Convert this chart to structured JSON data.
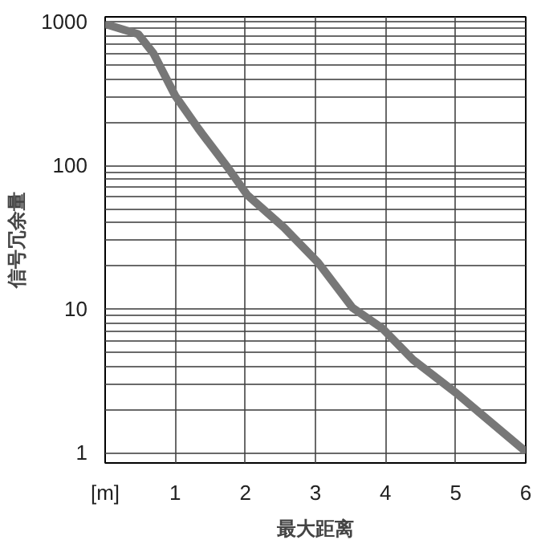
{
  "chart_data": {
    "type": "line",
    "xlabel": "最大距离",
    "ylabel": "信号冗余量",
    "x": [
      0.04,
      0.47,
      0.69,
      1.0,
      1.33,
      1.76,
      2.03,
      2.55,
      3.04,
      3.53,
      3.96,
      4.39,
      5.01,
      5.97
    ],
    "series": [
      {
        "color": "#777777",
        "values": [
          950,
          820,
          600,
          305,
          180,
          95,
          62,
          37,
          21,
          10.2,
          7.3,
          4.45,
          2.6,
          1.05
        ]
      }
    ],
    "log": "y",
    "xlim": [
      0,
      6
    ],
    "ylim": [
      0.85,
      1080
    ],
    "xticks": [
      {
        "value": 0,
        "label": "[m]"
      },
      1,
      2,
      3,
      4,
      5,
      6
    ],
    "yticks": [
      1,
      {
        "value": 2,
        "label": null
      },
      {
        "value": 3,
        "label": null
      },
      {
        "value": 4,
        "label": null
      },
      {
        "value": 5,
        "label": null
      },
      {
        "value": 6,
        "label": null
      },
      {
        "value": 7,
        "label": null
      },
      {
        "value": 8,
        "label": null
      },
      {
        "value": 9,
        "label": null
      },
      10,
      {
        "value": 20,
        "label": null
      },
      {
        "value": 30,
        "label": null
      },
      {
        "value": 40,
        "label": null
      },
      {
        "value": 50,
        "label": null
      },
      {
        "value": 60,
        "label": null
      },
      {
        "value": 70,
        "label": null
      },
      {
        "value": 80,
        "label": null
      },
      {
        "value": 90,
        "label": null
      },
      100,
      {
        "value": 200,
        "label": null
      },
      {
        "value": 300,
        "label": null
      },
      {
        "value": 400,
        "label": null
      },
      {
        "value": 500,
        "label": null
      },
      {
        "value": 600,
        "label": null
      },
      {
        "value": 700,
        "label": null
      },
      {
        "value": 800,
        "label": null
      },
      {
        "value": 900,
        "label": null
      },
      1000
    ],
    "grid": true,
    "line_style": "solid"
  }
}
